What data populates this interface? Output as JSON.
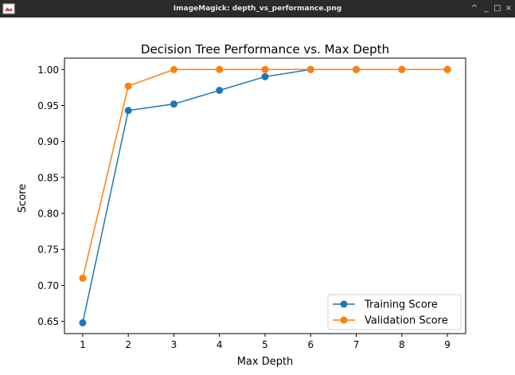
{
  "window": {
    "title": "ImageMagick: depth_vs_performance.png",
    "controls": {
      "minimize": "^",
      "restore": "_",
      "maximize": "□",
      "close": "×"
    }
  },
  "chart_data": {
    "type": "line",
    "title": "Decision Tree Performance vs. Max Depth",
    "xlabel": "Max Depth",
    "ylabel": "Score",
    "x": [
      1,
      2,
      3,
      4,
      5,
      6,
      7,
      8,
      9
    ],
    "xlim": [
      0.6,
      9.4
    ],
    "ylim": [
      0.633,
      1.0158
    ],
    "y_ticks": [
      0.65,
      0.7,
      0.75,
      0.8,
      0.85,
      0.9,
      0.95,
      1.0
    ],
    "y_tick_labels": [
      "0.65",
      "0.70",
      "0.75",
      "0.80",
      "0.85",
      "0.90",
      "0.95",
      "1.00"
    ],
    "x_tick_labels": [
      "1",
      "2",
      "3",
      "4",
      "5",
      "6",
      "7",
      "8",
      "9"
    ],
    "grid": false,
    "legend": "lower-right",
    "series": [
      {
        "name": "Training Score",
        "color": "#1f77b4",
        "values": [
          0.648,
          0.943,
          0.952,
          0.971,
          0.99,
          1.0,
          1.0,
          1.0,
          1.0
        ]
      },
      {
        "name": "Validation Score",
        "color": "#ff7f0e",
        "values": [
          0.71,
          0.977,
          1.0,
          1.0,
          1.0,
          1.0,
          1.0,
          1.0,
          1.0
        ]
      }
    ]
  }
}
